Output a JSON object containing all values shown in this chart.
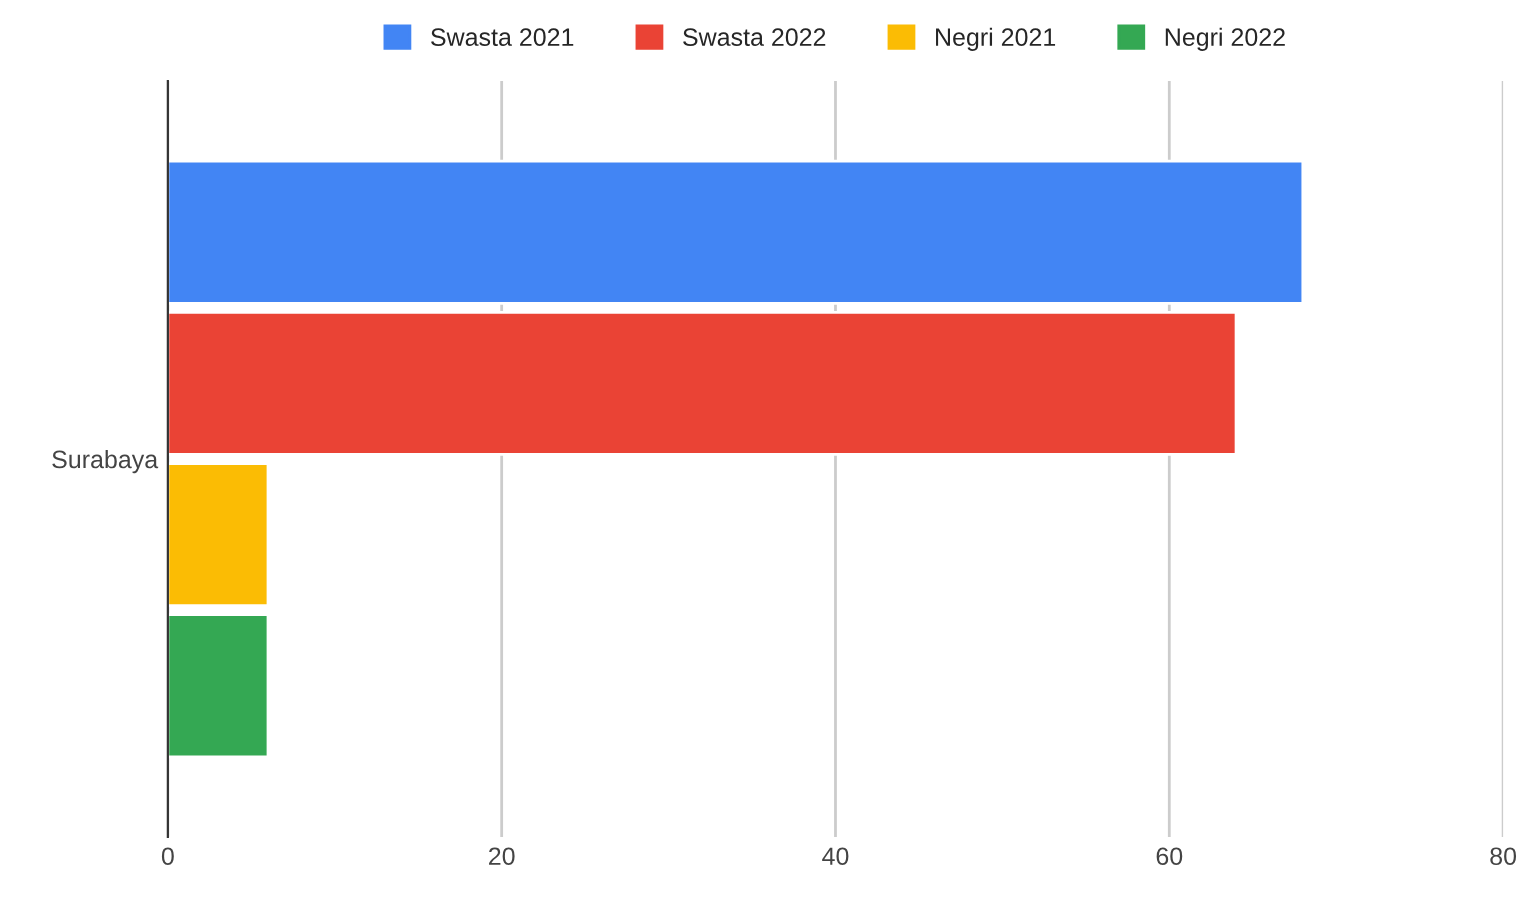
{
  "chart_data": {
    "type": "bar",
    "orientation": "horizontal",
    "categories": [
      "Surabaya"
    ],
    "series": [
      {
        "name": "Swasta 2021",
        "color": "#4285f4",
        "values": [
          68
        ]
      },
      {
        "name": "Swasta 2022",
        "color": "#ea4335",
        "values": [
          64
        ]
      },
      {
        "name": "Negri 2021",
        "color": "#fbbc04",
        "values": [
          6
        ]
      },
      {
        "name": "Negri 2022",
        "color": "#34a853",
        "values": [
          6
        ]
      }
    ],
    "xlim": [
      0,
      80
    ],
    "xticks": [
      0,
      20,
      40,
      60,
      80
    ],
    "grid": "x",
    "legend": "top"
  }
}
